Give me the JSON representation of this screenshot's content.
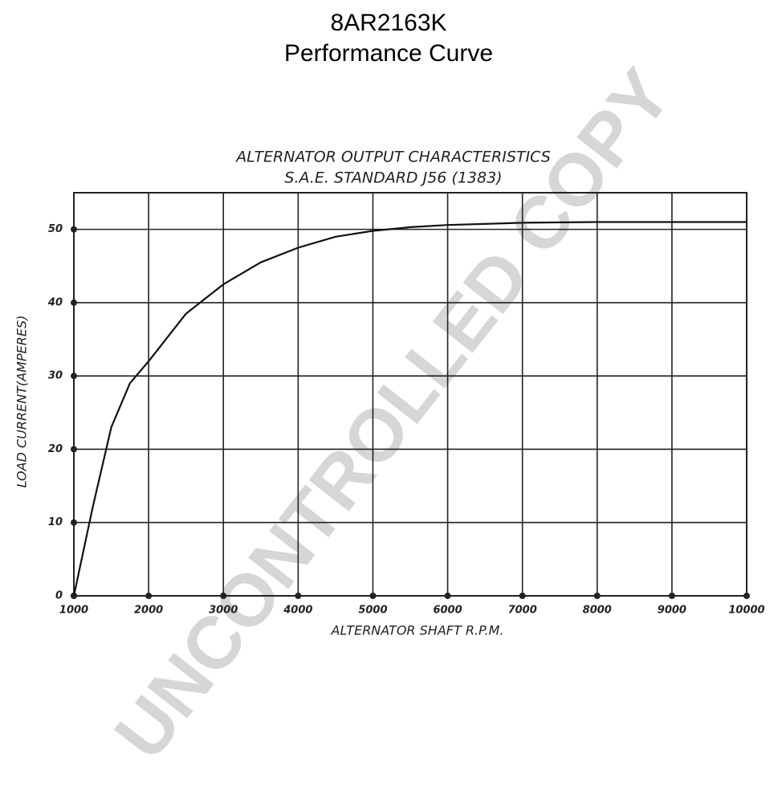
{
  "chart_data": {
    "type": "line",
    "title": "8AR2163K",
    "subtitle": "Performance Curve",
    "chart_heading": [
      "ALTERNATOR OUTPUT CHARACTERISTICS",
      "S.A.E. STANDARD J56 (1383)"
    ],
    "xlabel": "ALTERNATOR SHAFT R.P.M.",
    "ylabel": "LOAD CURRENT(AMPERES)",
    "x": [
      1000,
      1250,
      1500,
      1750,
      2000,
      2500,
      3000,
      3500,
      4000,
      4500,
      5000,
      5500,
      6000,
      7000,
      8000,
      9000,
      10000
    ],
    "values": [
      0,
      12,
      23,
      29,
      32,
      38.5,
      42.5,
      45.5,
      47.5,
      49,
      49.8,
      50.3,
      50.6,
      50.9,
      51,
      51,
      51
    ],
    "color": "#111111",
    "xlim": [
      1000,
      10000
    ],
    "xticks": [
      1000,
      2000,
      3000,
      4000,
      5000,
      6000,
      7000,
      8000,
      9000,
      10000
    ],
    "ylim": [
      0,
      55
    ],
    "yticks": [
      0,
      10,
      20,
      30,
      40,
      50
    ],
    "grid": true,
    "watermark": "UNCONTROLLED COPY"
  }
}
